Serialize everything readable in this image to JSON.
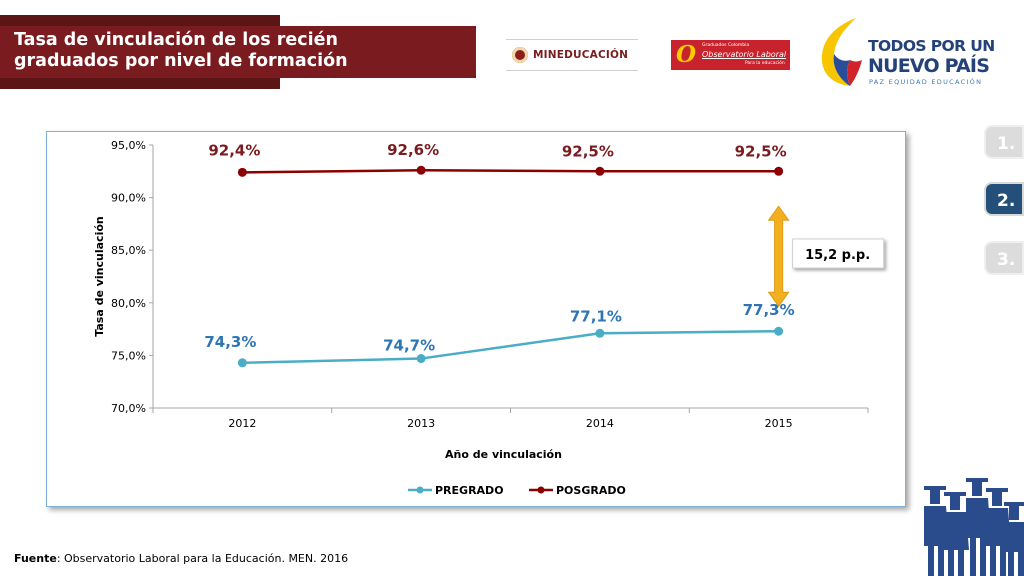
{
  "header": {
    "title_line1": "Tasa de vinculación de los recién",
    "title_line2": "graduados por nivel de formación"
  },
  "logos": {
    "men": "MINEDUCACIÓN",
    "ole_small": "Graduados Colombia",
    "ole_main": "Observatorio Laboral",
    "ole_sub": "Para la educación",
    "gov_line1": "TODOS POR UN",
    "gov_line2": "NUEVO PAÍS",
    "gov_line3": "PAZ  EQUIDAD  EDUCACIÓN"
  },
  "steps": [
    {
      "label": "1.",
      "active": false
    },
    {
      "label": "2.",
      "active": true
    },
    {
      "label": "3.",
      "active": false
    }
  ],
  "chart_data": {
    "type": "line",
    "x": [
      "2012",
      "2013",
      "2014",
      "2015"
    ],
    "xlabel": "Año de vinculación",
    "ylabel": "Tasa de vinculación",
    "ylim": [
      70,
      95
    ],
    "yticks": [
      "70,0%",
      "75,0%",
      "80,0%",
      "85,0%",
      "90,0%",
      "95,0%"
    ],
    "grid": false,
    "legend_position": "bottom",
    "series": [
      {
        "name": "PREGRADO",
        "color": "#4bacc6",
        "label_color": "#2e75b6",
        "values": [
          74.3,
          74.7,
          77.1,
          77.3
        ],
        "labels": [
          "74,3%",
          "74,7%",
          "77,1%",
          "77,3%"
        ]
      },
      {
        "name": "POSGRADO",
        "color": "#8b0000",
        "label_color": "#7a1c1f",
        "values": [
          92.4,
          92.6,
          92.5,
          92.5
        ],
        "labels": [
          "92,4%",
          "92,6%",
          "92,5%",
          "92,5%"
        ]
      }
    ],
    "annotation": {
      "text": "15,2 p.p.",
      "arrow_color": "#f2b01e",
      "from": 77.3,
      "to": 92.5
    }
  },
  "source": {
    "label": "Fuente",
    "text": ": Observatorio Laboral para la Educación. MEN. 2016"
  }
}
